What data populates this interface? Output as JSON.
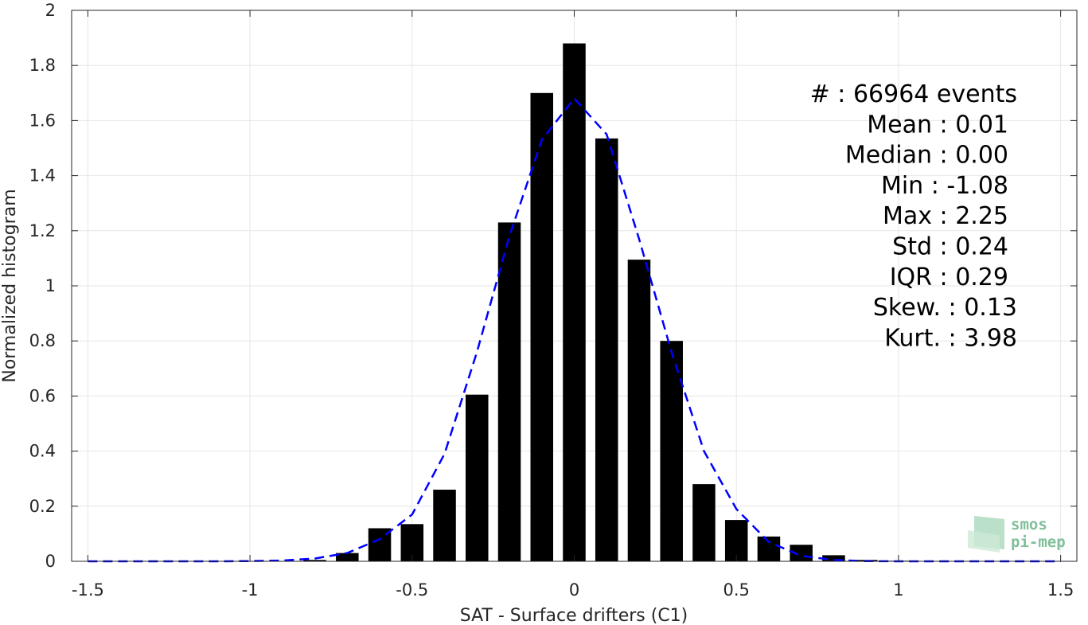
{
  "chart_data": {
    "type": "bar",
    "xlabel": "SAT - Surface drifters (C1)",
    "ylabel": "Normalized histogram",
    "xlim": [
      -1.55,
      1.55
    ],
    "ylim": [
      0,
      2
    ],
    "grid": true,
    "x_ticks": [
      "-1.5",
      "-1",
      "-0.5",
      "0",
      "0.5",
      "1",
      "1.5"
    ],
    "y_ticks": [
      "0",
      "0.2",
      "0.4",
      "0.6",
      "0.8",
      "1",
      "1.2",
      "1.4",
      "1.6",
      "1.8",
      "2"
    ],
    "bar_width": 0.07,
    "bars": {
      "x": [
        -0.8,
        -0.7,
        -0.6,
        -0.5,
        -0.4,
        -0.3,
        -0.2,
        -0.1,
        0.0,
        0.1,
        0.2,
        0.3,
        0.4,
        0.5,
        0.6,
        0.7,
        0.8,
        0.9,
        1.0
      ],
      "values": [
        0.005,
        0.03,
        0.12,
        0.135,
        0.26,
        0.605,
        1.23,
        1.7,
        1.88,
        1.535,
        1.095,
        0.8,
        0.28,
        0.15,
        0.09,
        0.06,
        0.022,
        0.005,
        0.002
      ],
      "color": "#000000"
    },
    "fit_curve": {
      "style": "dashed",
      "color": "#0000ff",
      "x": [
        -1.5,
        -1.4,
        -1.3,
        -1.2,
        -1.1,
        -1.0,
        -0.9,
        -0.8,
        -0.7,
        -0.6,
        -0.5,
        -0.4,
        -0.3,
        -0.2,
        -0.1,
        0.0,
        0.1,
        0.2,
        0.3,
        0.4,
        0.5,
        0.6,
        0.7,
        0.8,
        0.9,
        1.0,
        1.1,
        1.2,
        1.3,
        1.4,
        1.5
      ],
      "y": [
        0.0,
        0.0,
        0.0,
        0.0,
        0.0,
        0.001,
        0.003,
        0.01,
        0.03,
        0.08,
        0.17,
        0.39,
        0.76,
        1.18,
        1.53,
        1.68,
        1.55,
        1.17,
        0.76,
        0.4,
        0.19,
        0.07,
        0.02,
        0.005,
        0.001,
        0.0,
        0.0,
        0.0,
        0.0,
        0.0,
        0.0
      ]
    },
    "annotations": [
      "#  : 66964 events",
      "Mean : 0.01",
      "Median : 0.00",
      "Min : -1.08",
      "Max : 2.25",
      "Std : 0.24",
      "IQR : 0.29",
      "Skew. : 0.13",
      "Kurt. : 3.98"
    ]
  },
  "logo": {
    "line1": "smos",
    "line2": "pi-mep",
    "color": "#7fbf9a"
  }
}
